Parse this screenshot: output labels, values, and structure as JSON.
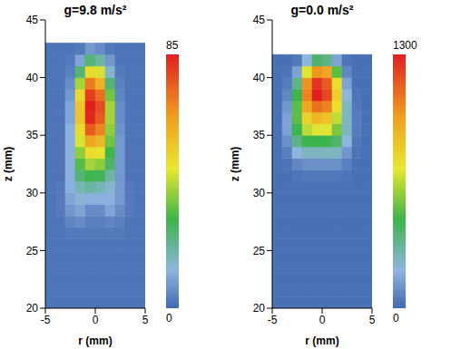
{
  "chart_data": [
    {
      "type": "heatmap",
      "title": "g=9.8 m/s²",
      "x_label": "r (mm)",
      "y_label": "z (mm)",
      "xlim": [
        -5,
        5
      ],
      "ylim": [
        20,
        45
      ],
      "xticks": [
        -5,
        0,
        5
      ],
      "yticks": [
        20,
        25,
        30,
        35,
        40,
        45
      ],
      "x_edges": [
        -5,
        -4,
        -3,
        -2,
        -1,
        0,
        1,
        2,
        3,
        4,
        5
      ],
      "y_edges": [
        20,
        21,
        22,
        23,
        24,
        25,
        26,
        27,
        28,
        29,
        30,
        31,
        32,
        33,
        34,
        35,
        36,
        37,
        38,
        39,
        40,
        41,
        42,
        43,
        44,
        45
      ],
      "cells": [
        [
          2,
          2,
          2,
          2,
          2,
          2,
          2,
          2,
          2,
          2
        ],
        [
          2,
          2,
          2,
          2,
          2,
          2,
          2,
          2,
          2,
          2
        ],
        [
          2,
          2,
          2,
          2,
          2,
          2,
          2,
          2,
          2,
          2
        ],
        [
          2,
          2,
          2,
          2,
          2,
          2,
          2,
          2,
          2,
          2
        ],
        [
          2,
          2,
          2,
          2,
          2,
          2,
          2,
          2,
          2,
          2
        ],
        [
          2,
          2,
          2,
          2,
          2,
          2,
          2,
          2,
          2,
          2
        ],
        [
          2,
          2,
          3,
          3,
          3,
          3,
          3,
          3,
          2,
          2
        ],
        [
          2,
          2,
          5,
          6,
          4,
          4,
          5,
          4,
          2,
          2
        ],
        [
          2,
          3,
          8,
          10,
          6,
          6,
          10,
          6,
          3,
          2
        ],
        [
          2,
          3,
          10,
          14,
          12,
          12,
          12,
          8,
          3,
          2
        ],
        [
          2,
          3,
          12,
          18,
          20,
          18,
          15,
          8,
          3,
          2
        ],
        [
          2,
          2,
          12,
          25,
          30,
          28,
          20,
          8,
          2,
          2
        ],
        [
          2,
          2,
          12,
          32,
          40,
          38,
          26,
          8,
          2,
          2
        ],
        [
          2,
          2,
          12,
          38,
          50,
          48,
          30,
          8,
          2,
          2
        ],
        [
          2,
          2,
          12,
          45,
          62,
          58,
          35,
          8,
          2,
          2
        ],
        [
          2,
          2,
          12,
          50,
          75,
          68,
          38,
          7,
          2,
          2
        ],
        [
          2,
          2,
          10,
          55,
          84,
          75,
          40,
          6,
          2,
          2
        ],
        [
          2,
          2,
          10,
          55,
          85,
          78,
          40,
          6,
          2,
          2
        ],
        [
          2,
          2,
          8,
          50,
          80,
          72,
          35,
          5,
          2,
          2
        ],
        [
          2,
          2,
          6,
          40,
          70,
          60,
          25,
          4,
          2,
          2
        ],
        [
          2,
          2,
          4,
          25,
          50,
          45,
          15,
          3,
          2,
          2
        ],
        [
          2,
          2,
          3,
          10,
          25,
          20,
          8,
          2,
          2,
          2
        ],
        [
          2,
          2,
          2,
          3,
          8,
          6,
          3,
          2,
          2,
          2
        ],
        [
          null,
          null,
          null,
          null,
          null,
          null,
          null,
          null,
          null,
          null
        ],
        [
          null,
          null,
          null,
          null,
          null,
          null,
          null,
          null,
          null,
          null
        ]
      ],
      "colorbar": {
        "range": [
          0,
          85
        ],
        "ticks": [
          0,
          85
        ]
      }
    },
    {
      "type": "heatmap",
      "title": "g=0.0 m/s²",
      "x_label": "r (mm)",
      "y_label": "z (mm)",
      "xlim": [
        -5,
        5
      ],
      "ylim": [
        20,
        45
      ],
      "xticks": [
        -5,
        0,
        5
      ],
      "yticks": [
        20,
        25,
        30,
        35,
        40,
        45
      ],
      "x_edges": [
        -5,
        -4,
        -3,
        -2,
        -1,
        0,
        1,
        2,
        3,
        4,
        5
      ],
      "y_edges": [
        20,
        21,
        22,
        23,
        24,
        25,
        26,
        27,
        28,
        29,
        30,
        31,
        32,
        33,
        34,
        35,
        36,
        37,
        38,
        39,
        40,
        41,
        42,
        43,
        44,
        45
      ],
      "cells": [
        [
          20,
          20,
          20,
          20,
          20,
          20,
          20,
          20,
          20,
          20
        ],
        [
          20,
          20,
          20,
          20,
          20,
          20,
          20,
          20,
          20,
          20
        ],
        [
          20,
          20,
          20,
          20,
          20,
          20,
          20,
          20,
          20,
          20
        ],
        [
          20,
          20,
          20,
          20,
          20,
          20,
          20,
          20,
          20,
          20
        ],
        [
          20,
          20,
          20,
          20,
          20,
          20,
          20,
          20,
          20,
          20
        ],
        [
          20,
          20,
          20,
          20,
          20,
          20,
          20,
          20,
          20,
          20
        ],
        [
          20,
          20,
          20,
          20,
          20,
          20,
          20,
          20,
          20,
          20
        ],
        [
          20,
          20,
          20,
          20,
          20,
          20,
          20,
          20,
          20,
          20
        ],
        [
          20,
          20,
          20,
          20,
          20,
          20,
          20,
          20,
          20,
          20
        ],
        [
          20,
          20,
          20,
          20,
          20,
          20,
          20,
          20,
          20,
          20
        ],
        [
          20,
          20,
          20,
          20,
          20,
          20,
          20,
          20,
          20,
          20
        ],
        [
          20,
          20,
          30,
          40,
          40,
          40,
          40,
          30,
          20,
          20
        ],
        [
          20,
          30,
          80,
          100,
          100,
          100,
          100,
          60,
          20,
          20
        ],
        [
          20,
          60,
          200,
          250,
          250,
          250,
          250,
          120,
          30,
          20
        ],
        [
          20,
          100,
          350,
          450,
          450,
          450,
          400,
          200,
          40,
          20
        ],
        [
          20,
          150,
          450,
          650,
          700,
          700,
          550,
          250,
          50,
          20
        ],
        [
          20,
          150,
          500,
          800,
          900,
          850,
          650,
          250,
          50,
          20
        ],
        [
          20,
          120,
          500,
          950,
          1100,
          1050,
          750,
          250,
          40,
          20
        ],
        [
          20,
          80,
          450,
          1050,
          1300,
          1200,
          800,
          200,
          30,
          20
        ],
        [
          20,
          50,
          350,
          1000,
          1250,
          1150,
          750,
          150,
          20,
          20
        ],
        [
          20,
          30,
          150,
          700,
          1000,
          950,
          500,
          80,
          20,
          20
        ],
        [
          20,
          20,
          40,
          200,
          400,
          350,
          150,
          30,
          20,
          20
        ],
        [
          null,
          null,
          null,
          null,
          null,
          null,
          null,
          null,
          null,
          null
        ],
        [
          null,
          null,
          null,
          null,
          null,
          null,
          null,
          null,
          null,
          null
        ],
        [
          null,
          null,
          null,
          null,
          null,
          null,
          null,
          null,
          null,
          null
        ]
      ],
      "colorbar": {
        "range": [
          0,
          1300
        ],
        "ticks": [
          0,
          1300
        ]
      }
    }
  ]
}
